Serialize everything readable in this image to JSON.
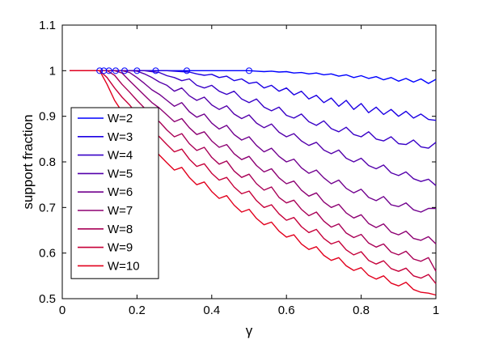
{
  "chart_data": {
    "type": "line",
    "title": "",
    "xlabel": "γ",
    "ylabel": "support fraction",
    "xlim": [
      0,
      1
    ],
    "ylim": [
      0.5,
      1.1
    ],
    "xticks": [
      "0",
      "0.2",
      "0.4",
      "0.6",
      "0.8",
      "1"
    ],
    "yticks": [
      "0.5",
      "0.6",
      "0.7",
      "0.8",
      "0.9",
      "1",
      "1.1"
    ],
    "grid": false,
    "legend_position": "lower-left",
    "x": [
      0.02,
      0.04,
      0.06,
      0.08,
      0.1,
      0.12,
      0.14,
      0.16,
      0.18,
      0.2,
      0.22,
      0.24,
      0.26,
      0.28,
      0.3,
      0.32,
      0.34,
      0.36,
      0.38,
      0.4,
      0.42,
      0.44,
      0.46,
      0.48,
      0.5,
      0.52,
      0.54,
      0.56,
      0.58,
      0.6,
      0.62,
      0.64,
      0.66,
      0.68,
      0.7,
      0.72,
      0.74,
      0.76,
      0.78,
      0.8,
      0.82,
      0.84,
      0.86,
      0.88,
      0.9,
      0.92,
      0.94,
      0.96,
      0.98,
      1.0
    ],
    "series": [
      {
        "name": "W=2",
        "color": "#0000ff",
        "values": [
          1.0,
          1.0,
          1.0,
          1.0,
          1.0,
          1.0,
          1.0,
          1.0,
          1.0,
          1.0,
          1.0,
          1.0,
          1.0,
          1.0,
          1.0,
          1.0,
          1.0,
          1.0,
          1.0,
          1.0,
          1.0,
          1.0,
          1.0,
          1.0,
          1.0,
          0.999,
          0.998,
          0.999,
          0.997,
          0.998,
          0.995,
          0.996,
          0.993,
          0.995,
          0.991,
          0.993,
          0.988,
          0.991,
          0.985,
          0.989,
          0.983,
          0.987,
          0.98,
          0.985,
          0.977,
          0.983,
          0.975,
          0.982,
          0.972,
          0.981
        ]
      },
      {
        "name": "W=3",
        "color": "#1c00e3",
        "values": [
          1.0,
          1.0,
          1.0,
          1.0,
          1.0,
          1.0,
          1.0,
          1.0,
          1.0,
          1.0,
          1.0,
          1.0,
          1.0,
          1.0,
          0.999,
          0.998,
          0.997,
          0.993,
          0.99,
          0.992,
          0.985,
          0.988,
          0.978,
          0.982,
          0.972,
          0.975,
          0.962,
          0.968,
          0.955,
          0.962,
          0.947,
          0.955,
          0.938,
          0.946,
          0.93,
          0.94,
          0.922,
          0.935,
          0.915,
          0.928,
          0.908,
          0.92,
          0.904,
          0.915,
          0.9,
          0.911,
          0.896,
          0.905,
          0.893,
          0.891
        ]
      },
      {
        "name": "W=4",
        "color": "#3800c7",
        "values": [
          1.0,
          1.0,
          1.0,
          1.0,
          1.0,
          1.0,
          1.0,
          1.0,
          1.0,
          1.0,
          1.0,
          0.998,
          0.996,
          0.989,
          0.985,
          0.978,
          0.982,
          0.968,
          0.962,
          0.968,
          0.955,
          0.948,
          0.955,
          0.938,
          0.93,
          0.938,
          0.92,
          0.912,
          0.92,
          0.902,
          0.896,
          0.905,
          0.888,
          0.88,
          0.89,
          0.873,
          0.866,
          0.876,
          0.86,
          0.855,
          0.866,
          0.85,
          0.846,
          0.855,
          0.84,
          0.838,
          0.848,
          0.833,
          0.83,
          0.843
        ]
      },
      {
        "name": "W=5",
        "color": "#5400ab",
        "values": [
          1.0,
          1.0,
          1.0,
          1.0,
          1.0,
          1.0,
          1.0,
          1.0,
          1.0,
          0.999,
          0.993,
          0.985,
          0.975,
          0.968,
          0.955,
          0.962,
          0.945,
          0.935,
          0.942,
          0.925,
          0.915,
          0.923,
          0.905,
          0.895,
          0.903,
          0.885,
          0.875,
          0.883,
          0.865,
          0.855,
          0.862,
          0.846,
          0.836,
          0.843,
          0.826,
          0.818,
          0.826,
          0.808,
          0.8,
          0.808,
          0.792,
          0.785,
          0.793,
          0.776,
          0.77,
          0.778,
          0.763,
          0.757,
          0.762,
          0.748
        ]
      },
      {
        "name": "W=6",
        "color": "#71008e",
        "values": [
          1.0,
          1.0,
          1.0,
          1.0,
          1.0,
          1.0,
          1.0,
          1.0,
          0.996,
          0.985,
          0.972,
          0.958,
          0.948,
          0.935,
          0.922,
          0.93,
          0.91,
          0.898,
          0.905,
          0.885,
          0.872,
          0.88,
          0.86,
          0.848,
          0.855,
          0.836,
          0.822,
          0.83,
          0.812,
          0.8,
          0.806,
          0.787,
          0.775,
          0.782,
          0.765,
          0.752,
          0.76,
          0.742,
          0.732,
          0.74,
          0.722,
          0.715,
          0.724,
          0.706,
          0.702,
          0.71,
          0.695,
          0.69,
          0.698,
          0.698
        ]
      },
      {
        "name": "W=7",
        "color": "#8d0072",
        "values": [
          1.0,
          1.0,
          1.0,
          1.0,
          1.0,
          1.0,
          1.0,
          0.995,
          0.978,
          0.962,
          0.946,
          0.93,
          0.918,
          0.903,
          0.888,
          0.895,
          0.875,
          0.86,
          0.866,
          0.846,
          0.832,
          0.838,
          0.818,
          0.805,
          0.812,
          0.792,
          0.778,
          0.785,
          0.765,
          0.752,
          0.758,
          0.738,
          0.725,
          0.732,
          0.712,
          0.7,
          0.707,
          0.688,
          0.677,
          0.684,
          0.665,
          0.656,
          0.664,
          0.646,
          0.64,
          0.648,
          0.632,
          0.628,
          0.636,
          0.62
        ]
      },
      {
        "name": "W=8",
        "color": "#a90056",
        "values": [
          1.0,
          1.0,
          1.0,
          1.0,
          1.0,
          1.0,
          0.99,
          0.97,
          0.953,
          0.935,
          0.918,
          0.9,
          0.888,
          0.87,
          0.855,
          0.862,
          0.84,
          0.825,
          0.832,
          0.81,
          0.795,
          0.802,
          0.78,
          0.766,
          0.773,
          0.752,
          0.738,
          0.745,
          0.722,
          0.71,
          0.716,
          0.696,
          0.682,
          0.69,
          0.67,
          0.657,
          0.664,
          0.644,
          0.634,
          0.641,
          0.622,
          0.613,
          0.62,
          0.602,
          0.596,
          0.604,
          0.587,
          0.582,
          0.59,
          0.56
        ]
      },
      {
        "name": "W=9",
        "color": "#c60039",
        "values": [
          1.0,
          1.0,
          1.0,
          1.0,
          1.0,
          0.985,
          0.962,
          0.942,
          0.925,
          0.905,
          0.888,
          0.87,
          0.855,
          0.838,
          0.822,
          0.828,
          0.806,
          0.79,
          0.796,
          0.775,
          0.76,
          0.766,
          0.745,
          0.73,
          0.736,
          0.715,
          0.7,
          0.706,
          0.686,
          0.672,
          0.678,
          0.658,
          0.645,
          0.652,
          0.632,
          0.62,
          0.626,
          0.607,
          0.596,
          0.603,
          0.584,
          0.576,
          0.583,
          0.566,
          0.56,
          0.567,
          0.55,
          0.545,
          0.553,
          0.533
        ]
      },
      {
        "name": "W=10",
        "color": "#e2001d",
        "values": [
          1.0,
          1.0,
          1.0,
          1.0,
          1.0,
          0.97,
          0.935,
          0.91,
          0.888,
          0.868,
          0.85,
          0.832,
          0.815,
          0.798,
          0.782,
          0.788,
          0.766,
          0.75,
          0.756,
          0.735,
          0.72,
          0.726,
          0.705,
          0.69,
          0.696,
          0.676,
          0.662,
          0.668,
          0.648,
          0.635,
          0.64,
          0.62,
          0.608,
          0.614,
          0.595,
          0.584,
          0.59,
          0.572,
          0.562,
          0.568,
          0.551,
          0.543,
          0.55,
          0.534,
          0.528,
          0.536,
          0.52,
          0.514,
          0.512,
          0.508
        ]
      }
    ],
    "markers": {
      "style": "open-circle",
      "color": "#0000ff",
      "points": [
        {
          "x": 0.5,
          "y": 1.0
        },
        {
          "x": 0.3333,
          "y": 1.0
        },
        {
          "x": 0.25,
          "y": 1.0
        },
        {
          "x": 0.2,
          "y": 1.0
        },
        {
          "x": 0.1667,
          "y": 1.0
        },
        {
          "x": 0.1429,
          "y": 1.0
        },
        {
          "x": 0.125,
          "y": 1.0
        },
        {
          "x": 0.1111,
          "y": 1.0
        },
        {
          "x": 0.1,
          "y": 1.0
        }
      ]
    }
  }
}
